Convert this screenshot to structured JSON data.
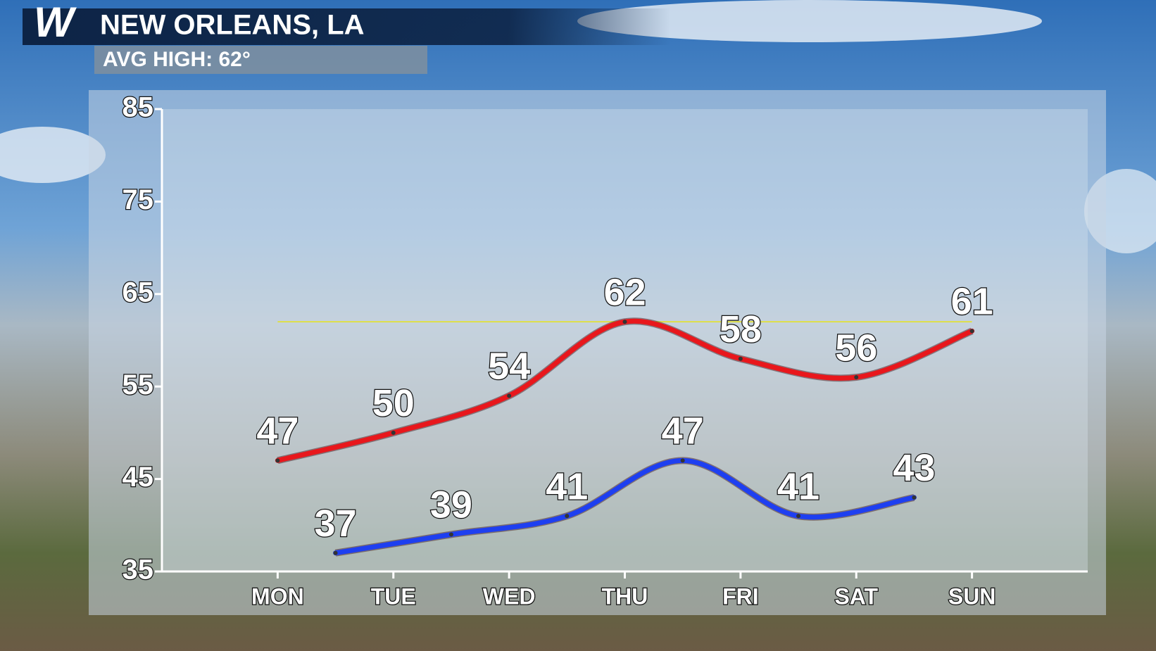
{
  "chart_data": {
    "type": "line",
    "title": "NEW ORLEANS, LA",
    "subtitle": "AVG HIGH: 62°",
    "xlim": [
      -1,
      7
    ],
    "xticks": [
      {
        "value": 0,
        "label": "MON"
      },
      {
        "value": 1,
        "label": "TUE"
      },
      {
        "value": 2,
        "label": "WED"
      },
      {
        "value": 3,
        "label": "THU"
      },
      {
        "value": 4,
        "label": "FRI"
      },
      {
        "value": 5,
        "label": "SAT"
      },
      {
        "value": 6,
        "label": "SUN"
      }
    ],
    "ylim": [
      35,
      85
    ],
    "yticks": [
      35,
      45,
      55,
      65,
      75,
      85
    ],
    "reference_line": {
      "value": 62,
      "color": "#e6e21c"
    },
    "series": [
      {
        "color": "#e8171c",
        "x": [
          0,
          1,
          2,
          3,
          4,
          5,
          6
        ],
        "values": [
          47,
          50,
          54,
          62,
          58,
          56,
          61
        ]
      },
      {
        "color": "#1e3ff0",
        "x": [
          0.5,
          1.5,
          2.5,
          3.5,
          4.5,
          5.5
        ],
        "values": [
          37,
          39,
          41,
          47,
          41,
          43
        ]
      }
    ]
  }
}
